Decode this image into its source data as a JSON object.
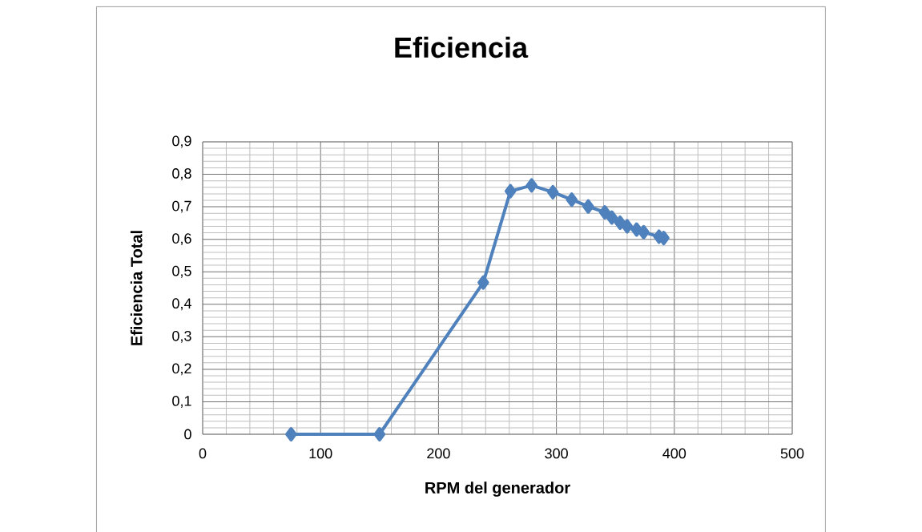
{
  "chart_data": {
    "type": "line",
    "title": "Eficiencia",
    "xlabel": "RPM del generador",
    "ylabel": "Eficiencia Total",
    "x": [
      75,
      150,
      238,
      261,
      279,
      297,
      313,
      327,
      341,
      347,
      354,
      360,
      368,
      374,
      387,
      391
    ],
    "series": [
      {
        "color": "#4f81bd",
        "values": [
          0,
          0,
          0.467,
          0.748,
          0.766,
          0.745,
          0.722,
          0.701,
          0.683,
          0.667,
          0.651,
          0.64,
          0.63,
          0.622,
          0.608,
          0.604
        ]
      }
    ],
    "xlim": [
      0,
      500
    ],
    "ylim": [
      0,
      0.9
    ],
    "xticks": [
      0,
      100,
      200,
      300,
      400,
      500
    ],
    "yticks": [
      {
        "value": 0,
        "label": "0"
      },
      {
        "value": 0.1,
        "label": "0,1"
      },
      {
        "value": 0.2,
        "label": "0,2"
      },
      {
        "value": 0.3,
        "label": "0,3"
      },
      {
        "value": 0.4,
        "label": "0,4"
      },
      {
        "value": 0.5,
        "label": "0,5"
      },
      {
        "value": 0.6,
        "label": "0,6"
      },
      {
        "value": 0.7,
        "label": "0,7"
      },
      {
        "value": 0.8,
        "label": "0,8"
      },
      {
        "value": 0.9,
        "label": "0,9"
      }
    ],
    "grid": true,
    "marker": "diamond",
    "line_style": "solid"
  }
}
